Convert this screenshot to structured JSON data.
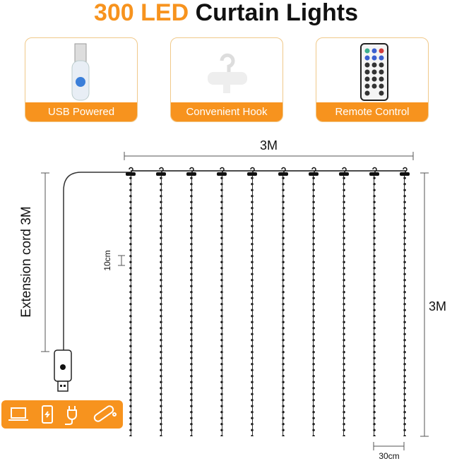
{
  "title": {
    "highlight": "300 LED",
    "rest": "Curtain Lights"
  },
  "features": [
    {
      "label": "USB Powered",
      "icon": "usb-controller-icon"
    },
    {
      "label": "Convenient Hook",
      "icon": "hook-icon"
    },
    {
      "label": "Remote Control",
      "icon": "remote-icon"
    }
  ],
  "dimensions": {
    "width": "3M",
    "height": "3M",
    "extension": "Extension cord 3M",
    "bulb_spacing": "10cm",
    "strand_spacing": "30cm"
  },
  "strand_count": 10,
  "device_icons": [
    "laptop-icon",
    "power-bank-icon",
    "plug-adapter-icon",
    "power-strip-icon"
  ],
  "colors": {
    "accent": "#f7931e"
  }
}
